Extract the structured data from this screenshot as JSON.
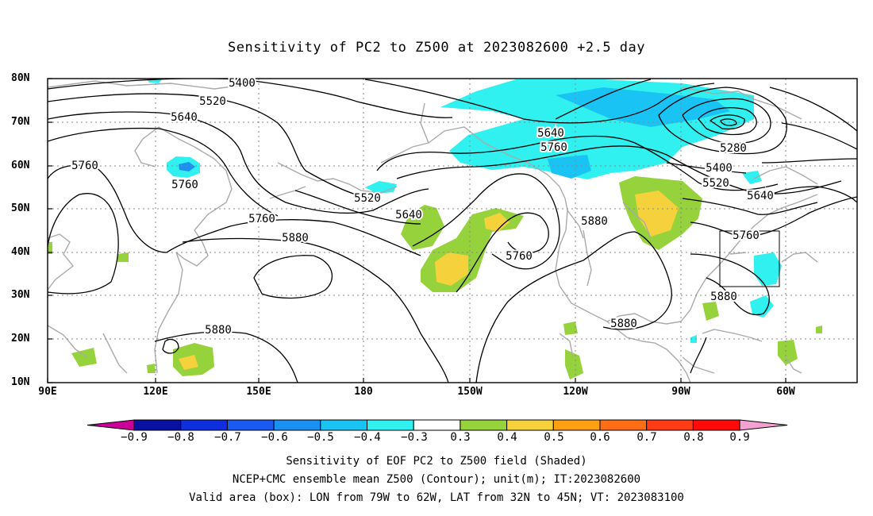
{
  "title": "Sensitivity of PC2 to Z500 at 2023082600 +2.5 day",
  "lat_labels": [
    "80N",
    "70N",
    "60N",
    "50N",
    "40N",
    "30N",
    "20N",
    "10N"
  ],
  "lon_labels": [
    "90E",
    "120E",
    "150E",
    "180",
    "150W",
    "120W",
    "90W",
    "60W"
  ],
  "contour_labels": {
    "c5400_a": "5400",
    "c5520_a": "5520",
    "c5640_a": "5640",
    "c5760_a": "5760",
    "c5760_b": "5760",
    "c5520_b": "5520",
    "c5640_b": "5640",
    "c5760_c": "5760",
    "c5880_a": "5880",
    "c5640_c": "5640",
    "c5760_d": "5760",
    "c5880_b": "5880",
    "c5760_e": "5760",
    "c5880_c": "5880",
    "c5280": "5280",
    "c5400_b": "5400",
    "c5520_c": "5520",
    "c5640_d": "5640",
    "c5760_f": "5760",
    "c5880_d": "5880",
    "c5880_e": "5880"
  },
  "colorbar": {
    "labels": [
      "−0.9",
      "−0.8",
      "−0.7",
      "−0.6",
      "−0.5",
      "−0.4",
      "−0.3",
      "0.3",
      "0.4",
      "0.5",
      "0.6",
      "0.7",
      "0.8",
      "0.9"
    ],
    "colors": [
      "#cc0099",
      "#0a10a0",
      "#1030e0",
      "#1a5af0",
      "#1a90f0",
      "#19c4f5",
      "#30f0f0",
      "#ffffff",
      "#96d23c",
      "#f5d23c",
      "#ff9f14",
      "#ff6e14",
      "#ff3c14",
      "#ff0a0a",
      "#f5a0d2"
    ]
  },
  "shading_colors": {
    "cyan": "#30f0f0",
    "lightblue": "#19c4f5",
    "blue": "#1a90f0",
    "green": "#96d23c",
    "yellow": "#f5d23c"
  },
  "captions": {
    "line1": "Sensitivity of EOF PC2 to Z500 field (Shaded)",
    "line2": "NCEP+CMC ensemble mean Z500 (Contour); unit(m); IT:2023082600",
    "line3": "Valid area (box): LON from 79W to 62W, LAT from 32N to 45N; VT: 2023083100"
  }
}
